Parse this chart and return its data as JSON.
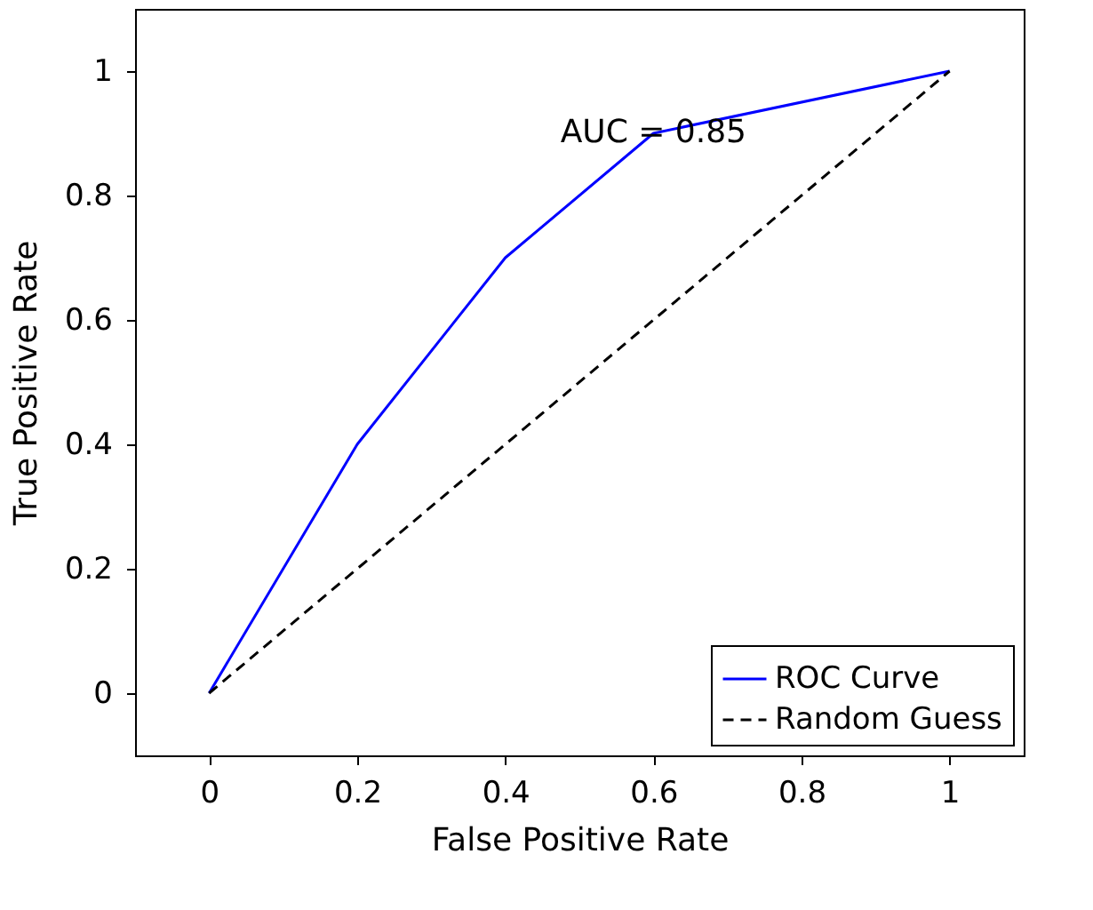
{
  "chart_data": {
    "type": "line",
    "xlabel": "False Positive Rate",
    "ylabel": "True Positive Rate",
    "xlim": [
      -0.1,
      1.1
    ],
    "ylim": [
      -0.1,
      1.1
    ],
    "xticks": [
      0,
      0.2,
      0.4,
      0.6,
      0.8,
      1
    ],
    "yticks": [
      0,
      0.2,
      0.4,
      0.6,
      0.8,
      1
    ],
    "grid": false,
    "legend": "bottom right",
    "marker": "none",
    "series": [
      {
        "name": "ROC Curve",
        "color": "#0000ff",
        "line_style": "solid",
        "x": [
          0,
          0.2,
          0.4,
          0.6,
          1
        ],
        "values": [
          0,
          0.4,
          0.7,
          0.9,
          1
        ]
      },
      {
        "name": "Random Guess",
        "color": "#000000",
        "line_style": "dashed",
        "x": [
          0,
          1
        ],
        "values": [
          0,
          1
        ]
      }
    ],
    "annotations": [
      {
        "text": "AUC = 0.85",
        "x": 0.6,
        "y": 0.9
      }
    ]
  }
}
